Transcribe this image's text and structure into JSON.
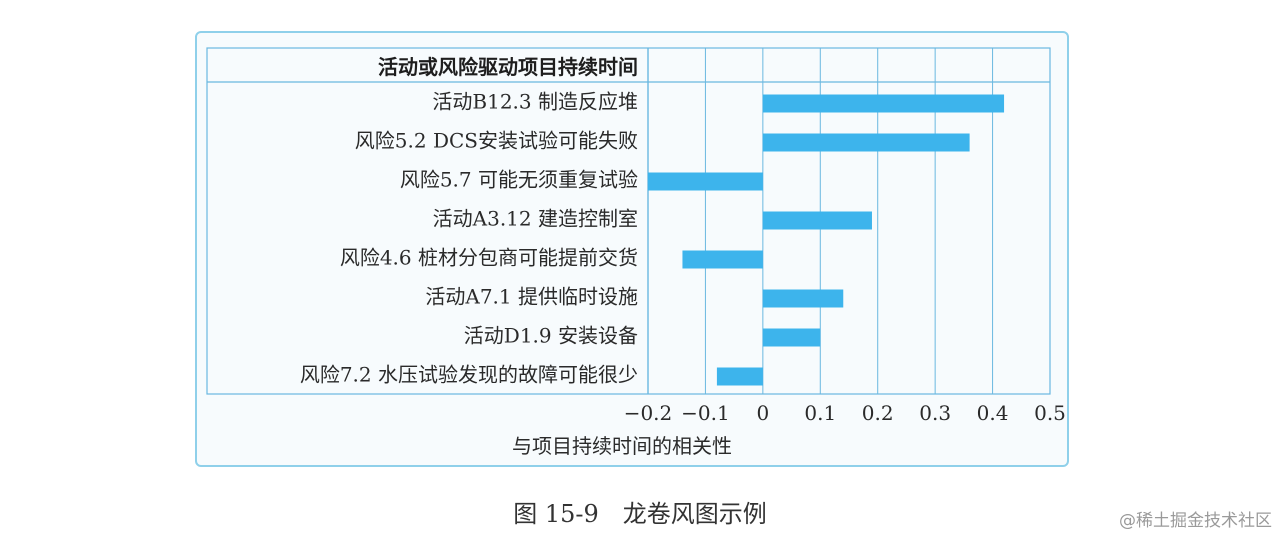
{
  "chart_data": {
    "type": "bar",
    "orientation": "horizontal",
    "header": "活动或风险驱动项目持续时间",
    "categories": [
      "活动B12.3 制造反应堆",
      "风险5.2  DCS安装试验可能失败",
      "风险5.7 可能无须重复试验",
      "活动A3.12 建造控制室",
      "风险4.6 桩材分包商可能提前交货",
      "活动A7.1 提供临时设施",
      "活动D1.9 安装设备",
      "风险7.2 水压试验发现的故障可能很少"
    ],
    "values": [
      0.42,
      0.36,
      -0.2,
      0.19,
      -0.14,
      0.14,
      0.1,
      -0.08
    ],
    "xlabel": "与项目持续时间的相关性",
    "xlim": [
      -0.2,
      0.5
    ],
    "ticks": [
      "−0.2",
      "−0.1",
      "0",
      "0.1",
      "0.2",
      "0.3",
      "0.4",
      "0.5"
    ],
    "bar_color": "#3db4ec",
    "grid": true
  },
  "caption": "图 15-9　龙卷风图示例",
  "watermark": "@稀土掘金技术社区"
}
